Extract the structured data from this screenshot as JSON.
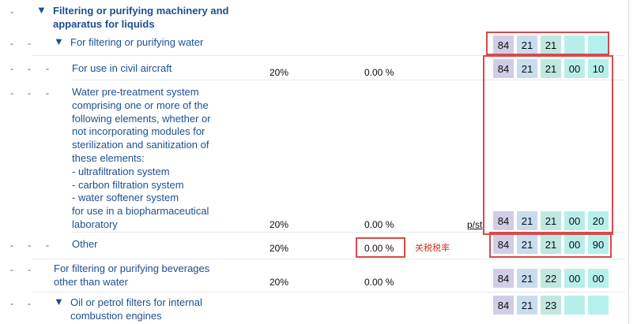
{
  "rows": [
    {
      "dashes": [
        "-"
      ],
      "label": "Filtering or purifying machinery and\napparatus for liquids"
    },
    {
      "dashes": [
        "-",
        "-"
      ],
      "label": "For filtering or purifying water",
      "code": [
        "84",
        "21",
        "21",
        "",
        ""
      ]
    },
    {
      "dashes": [
        "-",
        "-",
        "-"
      ],
      "label": "For use in civil aircraft",
      "third_country_duty": "20%",
      "tariff_rate": "0.00 %",
      "code": [
        "84",
        "21",
        "21",
        "00",
        "10"
      ]
    },
    {
      "dashes": [
        "-",
        "-",
        "-"
      ],
      "label": "Water pre-treatment system\ncomprising one or more of the\nfollowing elements, whether or\nnot incorporating modules for\nsterilization and sanitization of\nthese elements:\n- ultrafiltration system\n- carbon filtration system\n- water softener system\nfor use in a biopharmaceutical\nlaboratory",
      "third_country_duty": "20%",
      "tariff_rate": "0.00 %",
      "link": "p/st",
      "code": [
        "84",
        "21",
        "21",
        "00",
        "20"
      ]
    },
    {
      "dashes": [
        "-",
        "-",
        "-"
      ],
      "label": "Other",
      "third_country_duty": "20%",
      "tariff_rate": "0.00 %",
      "annotation": "关税税率",
      "code": [
        "84",
        "21",
        "21",
        "00",
        "90"
      ]
    },
    {
      "dashes": [
        "-",
        "-"
      ],
      "label": "For filtering or purifying beverages\nother than water",
      "third_country_duty": "20%",
      "tariff_rate": "0.00 %",
      "code": [
        "84",
        "21",
        "22",
        "00",
        "00"
      ]
    },
    {
      "dashes": [
        "-",
        "-"
      ],
      "label": "Oil or petrol filters for internal\ncombustion engines",
      "code": [
        "84",
        "21",
        "23",
        "",
        ""
      ]
    }
  ],
  "colors": {
    "link_text": "#1d4f91",
    "highlight_border": "#d84a4a",
    "annotation_text": "#d4351c",
    "code_segment_1": "#d2cde6",
    "code_segment_2": "#c8dcf0",
    "code_segment_3": "#bfe8e0",
    "code_segment_4": "#b8eeea",
    "code_segment_5": "#b4f0ec"
  },
  "icons": {
    "expand": "triangle-down-icon"
  }
}
